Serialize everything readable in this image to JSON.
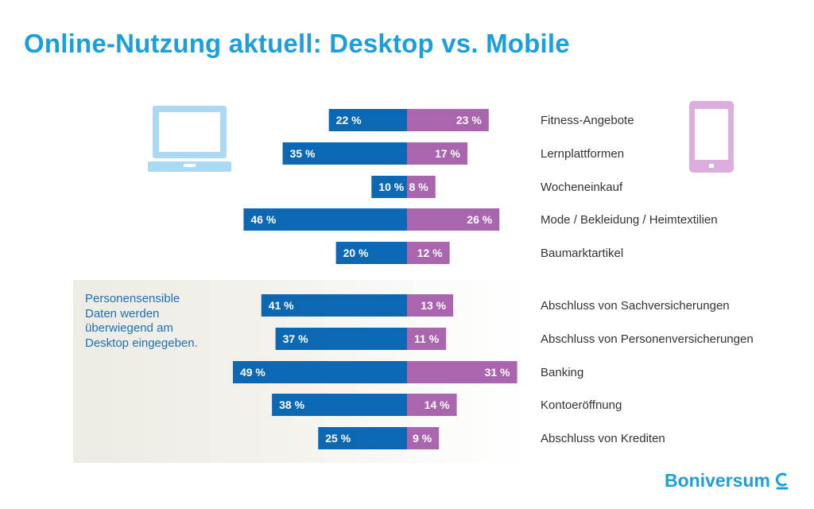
{
  "title": "Online-Nutzung aktuell: Desktop vs. Mobile",
  "note": "Personensensible\nDaten werden\nüberwiegend am\nDesktop eingegeben.",
  "brand": "Boniversum",
  "icons": {
    "left": "laptop-icon",
    "right": "tablet-icon",
    "brand": "boniversum-logo-icon"
  },
  "colors": {
    "title": "#1a9fdc",
    "desktop": "#0c68b3",
    "mobile": "#a965ad",
    "laptop_icon": "#aad9f4",
    "tablet_icon": "#dcaede"
  },
  "chart_data": {
    "type": "bar",
    "orientation": "horizontal-diverging",
    "unit": "%",
    "categories": [
      "Fitness-Angebote",
      "Lernplattformen",
      "Wocheneinkauf",
      "Mode / Bekleidung / Heimtextilien",
      "Baumarktartikel",
      "Abschluss von Sachversicherungen",
      "Abschluss von Personenversicherungen",
      "Banking",
      "Kontoeröffnung",
      "Abschluss von Krediten"
    ],
    "series": [
      {
        "values": [
          22,
          35,
          10,
          46,
          20,
          41,
          37,
          49,
          38,
          25
        ],
        "color": "#0c68b3"
      },
      {
        "values": [
          23,
          17,
          8,
          26,
          12,
          13,
          11,
          31,
          14,
          9
        ],
        "color": "#a965ad"
      }
    ],
    "value_labels": {
      "left": [
        "22 %",
        "35 %",
        "10 %",
        "46 %",
        "20 %",
        "41 %",
        "37 %",
        "49 %",
        "38 %",
        "25 %"
      ],
      "right": [
        "23 %",
        "17 %",
        "8 %",
        "26 %",
        "12 %",
        "13 %",
        "11 %",
        "31 %",
        "14 %",
        "9 %"
      ]
    },
    "xlim": [
      -49,
      31
    ],
    "grid": false,
    "legend": "none"
  }
}
